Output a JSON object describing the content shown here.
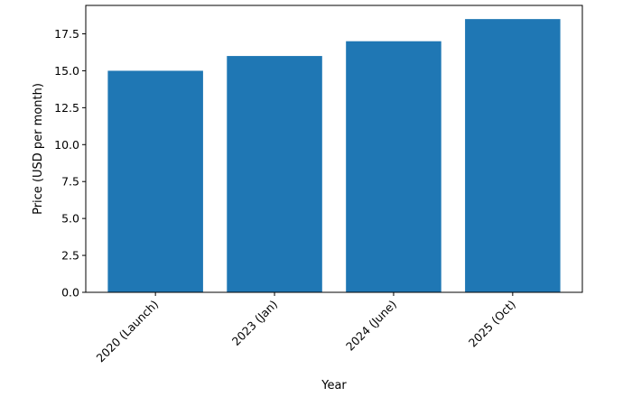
{
  "chart_data": {
    "type": "bar",
    "x_label": "Year",
    "y_label": "Price (USD per month)",
    "categories": [
      "2020 (Launch)",
      "2023 (Jan)",
      "2024 (June)",
      "2025 (Oct)"
    ],
    "values": [
      15,
      16,
      17,
      18.5
    ],
    "color": "#1f77b4",
    "ylim": [
      0,
      19.425
    ],
    "yticks": [
      {
        "value": 0,
        "label": "0.0"
      },
      {
        "value": 2.5,
        "label": "2.5"
      },
      {
        "value": 5,
        "label": "5.0"
      },
      {
        "value": 7.5,
        "label": "7.5"
      },
      {
        "value": 10,
        "label": "10.0"
      },
      {
        "value": 12.5,
        "label": "12.5"
      },
      {
        "value": 15,
        "label": "15.0"
      },
      {
        "value": 17.5,
        "label": "17.5"
      }
    ],
    "grid": false
  }
}
